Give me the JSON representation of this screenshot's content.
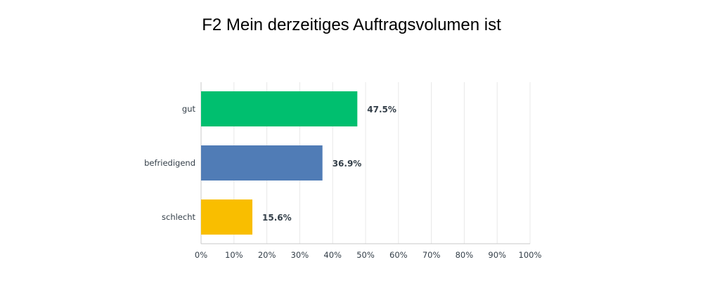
{
  "chart_data": {
    "type": "bar",
    "orientation": "horizontal",
    "title": "F2 Mein derzeitiges Auftragsvolumen ist",
    "categories": [
      "gut",
      "befriedigend",
      "schlecht"
    ],
    "values": [
      47.5,
      36.9,
      15.6
    ],
    "value_labels": [
      "47.5%",
      "36.9%",
      "15.6%"
    ],
    "colors": [
      "#00bf6f",
      "#507cb6",
      "#f9be00"
    ],
    "xlim": [
      0,
      100
    ],
    "x_ticks": [
      0,
      10,
      20,
      30,
      40,
      50,
      60,
      70,
      80,
      90,
      100
    ],
    "x_tick_labels": [
      "0%",
      "10%",
      "20%",
      "30%",
      "40%",
      "50%",
      "60%",
      "70%",
      "80%",
      "90%",
      "100%"
    ],
    "grid": true,
    "legend": "none",
    "grid_color": "#e8e8e8",
    "axis_color": "#c8c8c8"
  }
}
